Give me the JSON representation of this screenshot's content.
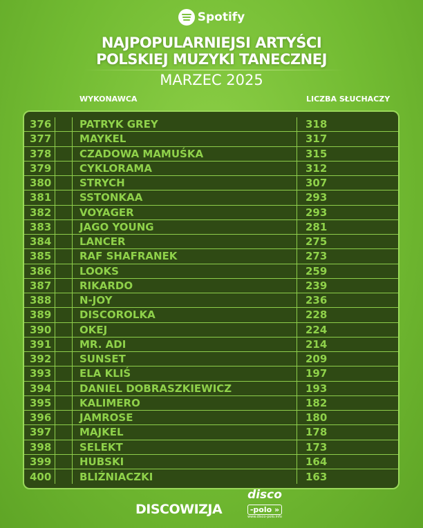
{
  "brand": "Spotify",
  "title_line1": "NAJPOPULARNIEJSI ARTYŚCI",
  "title_line2": "POLSKIEJ MUZYKI TANECZNEJ",
  "month": "MARZEC 2025",
  "headers": {
    "artist": "WYKONAWCA",
    "listeners": "LICZBA SŁUCHACZY"
  },
  "rows": [
    {
      "rank": "376",
      "artist": "PATRYK GREY",
      "listeners": "318"
    },
    {
      "rank": "377",
      "artist": "MAYKEL",
      "listeners": "317"
    },
    {
      "rank": "378",
      "artist": "CZADOWA MAMUŚKA",
      "listeners": "315"
    },
    {
      "rank": "379",
      "artist": "CYKLORAMA",
      "listeners": "312"
    },
    {
      "rank": "380",
      "artist": "STRYCH",
      "listeners": "307"
    },
    {
      "rank": "381",
      "artist": "SSTONKAA",
      "listeners": "293"
    },
    {
      "rank": "382",
      "artist": "VOYAGER",
      "listeners": "293"
    },
    {
      "rank": "383",
      "artist": "JAGO YOUNG",
      "listeners": "281"
    },
    {
      "rank": "384",
      "artist": "LANCER",
      "listeners": "275"
    },
    {
      "rank": "385",
      "artist": "RAF SHAFRANEK",
      "listeners": "273"
    },
    {
      "rank": "386",
      "artist": "LOOKS",
      "listeners": "259"
    },
    {
      "rank": "387",
      "artist": "RIKARDO",
      "listeners": "239"
    },
    {
      "rank": "388",
      "artist": "N-JOY",
      "listeners": "236"
    },
    {
      "rank": "389",
      "artist": "DISCOROLKA",
      "listeners": "228"
    },
    {
      "rank": "390",
      "artist": "OKEJ",
      "listeners": "224"
    },
    {
      "rank": "391",
      "artist": "MR. ADI",
      "listeners": "214"
    },
    {
      "rank": "392",
      "artist": "SUNSET",
      "listeners": "209"
    },
    {
      "rank": "393",
      "artist": "ELA KLIŚ",
      "listeners": "197"
    },
    {
      "rank": "394",
      "artist": "DANIEL DOBRASZKIEWICZ",
      "listeners": "193"
    },
    {
      "rank": "395",
      "artist": "KALIMERO",
      "listeners": "182"
    },
    {
      "rank": "396",
      "artist": "JAMROSE",
      "listeners": "180"
    },
    {
      "rank": "397",
      "artist": "MAJKEL",
      "listeners": "178"
    },
    {
      "rank": "398",
      "artist": "SELEKT",
      "listeners": "173"
    },
    {
      "rank": "399",
      "artist": "HUBSKI",
      "listeners": "164"
    },
    {
      "rank": "400",
      "artist": "BLIŹNIACZKI",
      "listeners": "163"
    }
  ],
  "footer": {
    "brand1": "DISCOWIZJA",
    "logo_top": "disco",
    "logo_mid": "-polo »",
    "logo_url": "www.disco-polo.info"
  }
}
